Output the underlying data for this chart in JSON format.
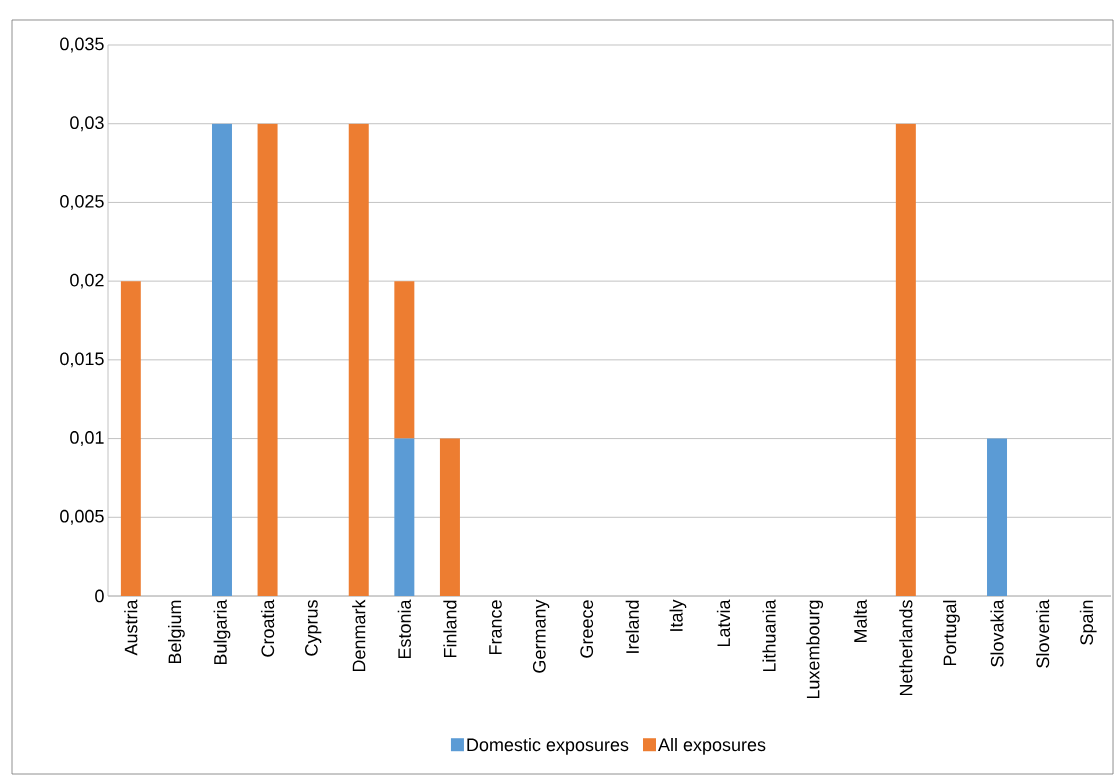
{
  "chart_data": {
    "type": "bar",
    "stacked": true,
    "grid": "y",
    "legend": "bottom",
    "categories": [
      "Austria",
      "Belgium",
      "Bulgaria",
      "Croatia",
      "Cyprus",
      "Denmark",
      "Estonia",
      "Finland",
      "France",
      "Germany",
      "Greece",
      "Ireland",
      "Italy",
      "Latvia",
      "Lithuania",
      "Luxembourg",
      "Malta",
      "Netherlands",
      "Portugal",
      "Slovakia",
      "Slovenia",
      "Spain"
    ],
    "series": [
      {
        "name": "Domestic exposures",
        "color": "#5b9bd5",
        "values": [
          0,
          0,
          0.03,
          0,
          0,
          0,
          0.01,
          0,
          0,
          0,
          0,
          0,
          0,
          0,
          0,
          0,
          0,
          0,
          0,
          0.01,
          0,
          0
        ]
      },
      {
        "name": "All exposures",
        "color": "#ed7d31",
        "values": [
          0.02,
          0,
          0,
          0.03,
          0,
          0.03,
          0.01,
          0.01,
          0,
          0,
          0,
          0,
          0,
          0,
          0,
          0,
          0,
          0.03,
          0,
          0,
          0,
          0
        ]
      }
    ],
    "ylim": [
      0,
      0.035
    ],
    "yticks": [
      0,
      {
        "value": 0.005,
        "label": "0,005"
      },
      {
        "value": 0.01,
        "label": "0,01"
      },
      {
        "value": 0.015,
        "label": "0,015"
      },
      {
        "value": 0.02,
        "label": "0,02"
      },
      {
        "value": 0.025,
        "label": "0,025"
      },
      {
        "value": 0.03,
        "label": "0,03"
      },
      {
        "value": 0.035,
        "label": "0,035"
      }
    ]
  }
}
